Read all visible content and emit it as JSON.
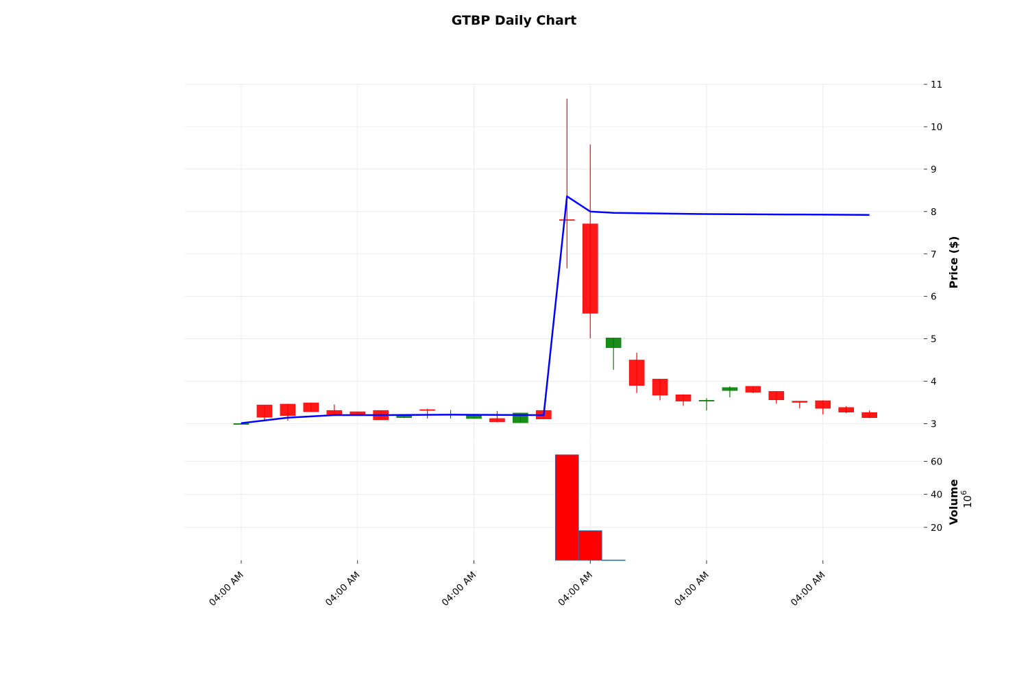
{
  "chart_data": {
    "type": "candlestick",
    "title": "GTBP Daily Chart",
    "ylabel": "Price ($)",
    "volume_label": "Volume",
    "volume_exponent_base": "10",
    "volume_exponent_power": "6",
    "x_tick_labels": [
      "04:00 AM",
      "04:00 AM",
      "04:00 AM",
      "04:00 AM",
      "04:00 AM",
      "04:00 AM"
    ],
    "x_tick_indices": [
      0,
      5,
      10,
      15,
      20,
      25
    ],
    "price_ylim": [
      2.55,
      11.0
    ],
    "price_ticks": [
      3,
      4,
      5,
      6,
      7,
      8,
      9,
      10,
      11
    ],
    "volume_ylim": [
      0,
      64
    ],
    "volume_ticks": [
      20,
      40,
      60
    ],
    "grid": true,
    "colors": {
      "up": "#008000",
      "down": "#ff0000",
      "line": "#0000ff",
      "volume_edge": "#1f77b4"
    },
    "candles": [
      {
        "open": 3.0,
        "high": 3.02,
        "low": 2.99,
        "close": 3.0
      },
      {
        "open": 3.44,
        "high": 3.44,
        "low": 3.06,
        "close": 3.15
      },
      {
        "open": 3.46,
        "high": 3.46,
        "low": 3.07,
        "close": 3.19
      },
      {
        "open": 3.49,
        "high": 3.49,
        "low": 3.28,
        "close": 3.28
      },
      {
        "open": 3.31,
        "high": 3.45,
        "low": 3.21,
        "close": 3.22
      },
      {
        "open": 3.28,
        "high": 3.28,
        "low": 3.19,
        "close": 3.22
      },
      {
        "open": 3.31,
        "high": 3.31,
        "low": 3.09,
        "close": 3.09
      },
      {
        "open": 3.14,
        "high": 3.18,
        "low": 3.13,
        "close": 3.19
      },
      {
        "open": 3.33,
        "high": 3.35,
        "low": 3.12,
        "close": 3.31
      },
      {
        "open": 3.2,
        "high": 3.32,
        "low": 3.12,
        "close": 3.22
      },
      {
        "open": 3.12,
        "high": 3.21,
        "low": 3.12,
        "close": 3.21
      },
      {
        "open": 3.12,
        "high": 3.3,
        "low": 3.03,
        "close": 3.04
      },
      {
        "open": 3.02,
        "high": 3.25,
        "low": 3.02,
        "close": 3.25
      },
      {
        "open": 3.31,
        "high": 3.31,
        "low": 3.11,
        "close": 3.11
      },
      {
        "open": 7.81,
        "high": 10.66,
        "low": 6.66,
        "close": 7.8
      },
      {
        "open": 7.71,
        "high": 9.58,
        "low": 5.01,
        "close": 5.6
      },
      {
        "open": 4.79,
        "high": 5.02,
        "low": 4.27,
        "close": 5.02
      },
      {
        "open": 4.5,
        "high": 4.67,
        "low": 3.72,
        "close": 3.9
      },
      {
        "open": 4.05,
        "high": 4.05,
        "low": 3.55,
        "close": 3.67
      },
      {
        "open": 3.68,
        "high": 3.69,
        "low": 3.42,
        "close": 3.53
      },
      {
        "open": 3.53,
        "high": 3.6,
        "low": 3.31,
        "close": 3.55
      },
      {
        "open": 3.78,
        "high": 3.88,
        "low": 3.62,
        "close": 3.85
      },
      {
        "open": 3.88,
        "high": 3.88,
        "low": 3.72,
        "close": 3.74
      },
      {
        "open": 3.76,
        "high": 3.76,
        "low": 3.47,
        "close": 3.56
      },
      {
        "open": 3.53,
        "high": 3.53,
        "low": 3.36,
        "close": 3.5
      },
      {
        "open": 3.54,
        "high": 3.55,
        "low": 3.22,
        "close": 3.36
      },
      {
        "open": 3.38,
        "high": 3.41,
        "low": 3.25,
        "close": 3.27
      },
      {
        "open": 3.26,
        "high": 3.31,
        "low": 3.13,
        "close": 3.14
      }
    ],
    "line_series": {
      "x_indices": [
        0,
        2,
        4,
        6,
        9,
        13,
        14,
        15,
        16,
        20,
        24,
        27
      ],
      "values": [
        3.01,
        3.14,
        3.2,
        3.2,
        3.21,
        3.2,
        8.36,
        8.0,
        7.97,
        7.94,
        7.93,
        7.92
      ]
    },
    "volume": {
      "x_indices": [
        14,
        15,
        16
      ],
      "values": [
        64,
        18,
        0.2
      ],
      "colors": [
        "#ff0000",
        "#ff0000",
        "#1f77b4"
      ]
    }
  }
}
